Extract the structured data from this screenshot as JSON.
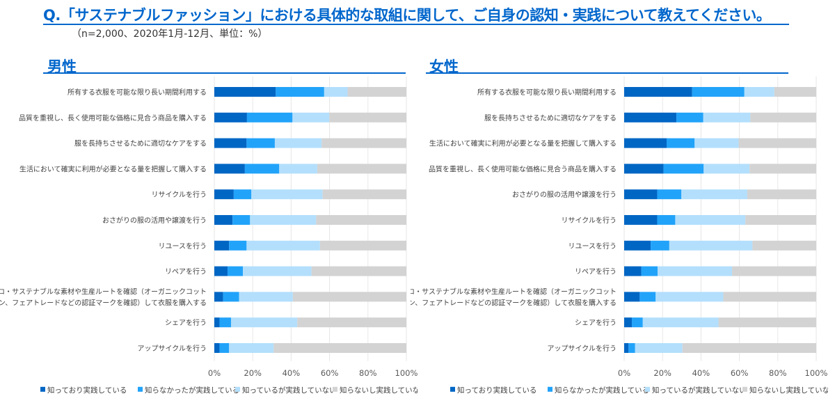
{
  "title": "Q.「サステナブルファッション」における具体的な取組に関して、ご自身の認知・実践について教えてください。",
  "subtitle": "（n=2,000、2020年1月-12月、単位：%）",
  "colors": {
    "accent": "#0066cc",
    "series": [
      "#0066c4",
      "#22a3fa",
      "#b3dffc",
      "#d3d3d3"
    ]
  },
  "chart_data": [
    {
      "type": "bar",
      "orientation": "horizontal",
      "stacked": "100%",
      "title": "男性",
      "xlim": [
        0,
        100
      ],
      "x_ticks": [
        "0%",
        "20%",
        "40%",
        "60%",
        "80%",
        "100%"
      ],
      "grid": true,
      "legend_position": "bottom",
      "categories": [
        "所有する衣服を可能な限り長い期間利用する",
        "品質を重視し、長く使用可能な価格に見合う商品を購入する",
        "服を長持ちさせるために適切なケアをする",
        "生活において確実に利用が必要となる量を把握して購入する",
        "リサイクルを行う",
        "おさがりの服の活用や譲渡を行う",
        "リユースを行う",
        "リペアを行う",
        "エコ・サステナブルな素材や生産ルートを確認（オーガニックコット\nン、フェアトレードなどの認証マークを確認）して衣服を購入する",
        "シェアを行う",
        "アップサイクルを行う"
      ],
      "series": [
        {
          "name": "知っており実践している",
          "values": [
            32.0,
            17.0,
            16.8,
            15.9,
            10.1,
            9.5,
            7.7,
            6.9,
            4.6,
            2.7,
            2.7
          ]
        },
        {
          "name": "知らなかったが実践している",
          "values": [
            25.2,
            23.7,
            14.7,
            17.9,
            9.2,
            9.1,
            9.1,
            8.0,
            8.3,
            6.0,
            5.0
          ]
        },
        {
          "name": "知っているが実践していない",
          "values": [
            12.2,
            19.2,
            24.4,
            19.8,
            37.1,
            34.4,
            38.2,
            35.7,
            28.0,
            34.5,
            23.2
          ]
        },
        {
          "name": "知らないし実践していない",
          "values": [
            30.6,
            40.1,
            44.1,
            46.4,
            43.6,
            47.0,
            45.0,
            49.4,
            59.1,
            56.8,
            69.1
          ]
        }
      ]
    },
    {
      "type": "bar",
      "orientation": "horizontal",
      "stacked": "100%",
      "title": "女性",
      "xlim": [
        0,
        100
      ],
      "x_ticks": [
        "0%",
        "20%",
        "40%",
        "60%",
        "80%",
        "100%"
      ],
      "grid": true,
      "legend_position": "bottom",
      "categories": [
        "所有する衣服を可能な限り長い期間利用する",
        "服を長持ちさせるために適切なケアをする",
        "生活において確実に利用が必要となる量を把握して購入する",
        "品質を重視し、長く使用可能な価格に見合う商品を購入する",
        "おさがりの服の活用や譲渡を行う",
        "リサイクルを行う",
        "リユースを行う",
        "リペアを行う",
        "エコ・サステナブルな素材や生産ルートを確認（オーガニックコット\nン、フェアトレードなどの認証マークを確認）して衣服を購入する",
        "シェアを行う",
        "アップサイクルを行う"
      ],
      "series": [
        {
          "name": "知っており実践している",
          "values": [
            35.4,
            27.2,
            22.1,
            20.5,
            17.2,
            17.2,
            13.8,
            8.9,
            8.1,
            4.0,
            2.3
          ]
        },
        {
          "name": "知らなかったが実践している",
          "values": [
            27.2,
            14.0,
            14.6,
            20.9,
            12.6,
            9.4,
            9.7,
            8.5,
            8.3,
            5.7,
            3.4
          ]
        },
        {
          "name": "知っているが実践していない",
          "values": [
            15.6,
            24.5,
            22.9,
            23.9,
            34.3,
            36.5,
            43.3,
            38.8,
            35.2,
            39.4,
            24.6
          ]
        },
        {
          "name": "知らないし実践していない",
          "values": [
            21.8,
            34.3,
            40.4,
            34.7,
            35.9,
            36.9,
            33.2,
            43.8,
            48.4,
            50.9,
            69.7
          ]
        }
      ]
    }
  ]
}
